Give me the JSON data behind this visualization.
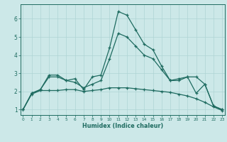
{
  "xlabel": "Humidex (Indice chaleur)",
  "x": [
    0,
    1,
    2,
    3,
    4,
    5,
    6,
    7,
    8,
    9,
    10,
    11,
    12,
    13,
    14,
    15,
    16,
    17,
    18,
    19,
    20,
    21,
    22,
    23
  ],
  "line1_y": [
    1.0,
    1.9,
    2.1,
    2.9,
    2.9,
    2.6,
    2.7,
    2.1,
    2.8,
    2.9,
    4.4,
    6.4,
    6.2,
    5.4,
    4.6,
    4.3,
    3.4,
    2.6,
    2.6,
    2.8,
    1.9,
    2.4,
    1.2,
    1.0
  ],
  "line2_y": [
    1.0,
    1.9,
    2.1,
    2.8,
    2.8,
    2.6,
    2.5,
    2.2,
    2.4,
    2.6,
    3.8,
    5.2,
    5.0,
    4.5,
    4.0,
    3.8,
    3.2,
    2.6,
    2.7,
    2.8,
    2.8,
    2.4,
    1.2,
    1.0
  ],
  "line3_y": [
    1.0,
    1.85,
    2.05,
    2.05,
    2.05,
    2.1,
    2.1,
    2.0,
    2.05,
    2.1,
    2.2,
    2.2,
    2.2,
    2.15,
    2.1,
    2.05,
    2.0,
    1.95,
    1.85,
    1.75,
    1.6,
    1.4,
    1.15,
    0.95
  ],
  "bg_color": "#cce8e8",
  "line_color": "#1e6b60",
  "grid_color": "#aed4d4",
  "ylim": [
    0.7,
    6.8
  ],
  "xlim": [
    -0.3,
    23.3
  ],
  "yticks": [
    1,
    2,
    3,
    4,
    5,
    6
  ],
  "xticks": [
    0,
    1,
    2,
    3,
    4,
    5,
    6,
    7,
    8,
    9,
    10,
    11,
    12,
    13,
    14,
    15,
    16,
    17,
    18,
    19,
    20,
    21,
    22,
    23
  ]
}
